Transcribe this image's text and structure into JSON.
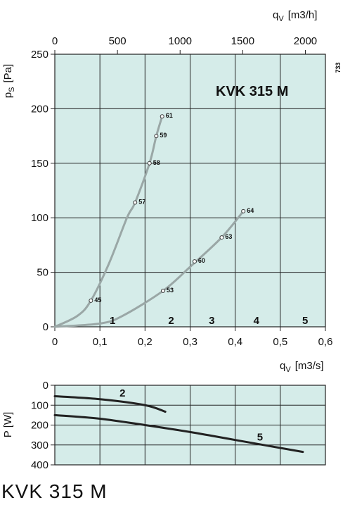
{
  "bottom_title": "KVK 315 M",
  "side_code": "733",
  "colors": {
    "plot_bg": "#d5ece9",
    "grid": "#222222",
    "curve_gray": "#9aa7a6",
    "curve_dark": "#222222"
  },
  "chart_data": [
    {
      "type": "line",
      "title": "KVK 315 M",
      "ylabel": "pS [Pa]",
      "ylabel_main": "p",
      "ylabel_sub": "S",
      "ylabel_unit": "[Pa]",
      "xlabel": "qV [m3/s]",
      "xlabel_main": "q",
      "xlabel_sub": "V",
      "xlabel_unit": "[m3/s]",
      "x2label": "qV [m3/h]",
      "x2label_main": "q",
      "x2label_sub": "V",
      "x2label_unit": "[m3/h]",
      "xlim": [
        0,
        0.6
      ],
      "ylim": [
        0,
        250
      ],
      "x_ticks": [
        "0",
        "0,1",
        "0,2",
        "0,3",
        "0,4",
        "0,5",
        "0,6"
      ],
      "y_ticks": [
        "0",
        "50",
        "100",
        "150",
        "200",
        "250"
      ],
      "x2_ticks": [
        "0",
        "500",
        "1000",
        "1500",
        "2000"
      ],
      "grid": true,
      "series": [
        {
          "x": [
            0.0,
            0.05,
            0.08,
            0.12,
            0.16,
            0.178,
            0.21,
            0.225,
            0.238
          ],
          "y": [
            0,
            10,
            24,
            58,
            100,
            114,
            150,
            175,
            193
          ],
          "markers": [
            {
              "x": 0.08,
              "y": 24,
              "label": "45"
            },
            {
              "x": 0.178,
              "y": 114,
              "label": "57"
            },
            {
              "x": 0.21,
              "y": 150,
              "label": "58"
            },
            {
              "x": 0.225,
              "y": 175,
              "label": "59"
            },
            {
              "x": 0.238,
              "y": 193,
              "label": "61"
            }
          ]
        },
        {
          "x": [
            0.0,
            0.1,
            0.15,
            0.24,
            0.3,
            0.37,
            0.418
          ],
          "y": [
            0,
            3,
            10,
            33,
            55,
            82,
            106
          ],
          "markers": [
            {
              "x": 0.24,
              "y": 33,
              "label": "53"
            },
            {
              "x": 0.31,
              "y": 60,
              "label": "60"
            },
            {
              "x": 0.37,
              "y": 82,
              "label": "63"
            },
            {
              "x": 0.418,
              "y": 106,
              "label": "64"
            }
          ]
        }
      ],
      "zone_labels": [
        {
          "x": 0.128,
          "label": "1"
        },
        {
          "x": 0.258,
          "label": "2"
        },
        {
          "x": 0.348,
          "label": "3"
        },
        {
          "x": 0.447,
          "label": "4"
        },
        {
          "x": 0.555,
          "label": "5"
        }
      ]
    },
    {
      "type": "line",
      "ylabel": "P [W]",
      "xlim": [
        0,
        0.6
      ],
      "ylim": [
        0,
        400
      ],
      "y_ticks": [
        "0",
        "100",
        "200",
        "300",
        "400"
      ],
      "grid": true,
      "series": [
        {
          "name": "2",
          "x": [
            0.0,
            0.1,
            0.2,
            0.245
          ],
          "y": [
            55,
            70,
            100,
            133
          ]
        },
        {
          "name": "5",
          "x": [
            0.0,
            0.1,
            0.2,
            0.3,
            0.4,
            0.55
          ],
          "y": [
            150,
            168,
            200,
            235,
            275,
            335
          ]
        }
      ]
    }
  ]
}
